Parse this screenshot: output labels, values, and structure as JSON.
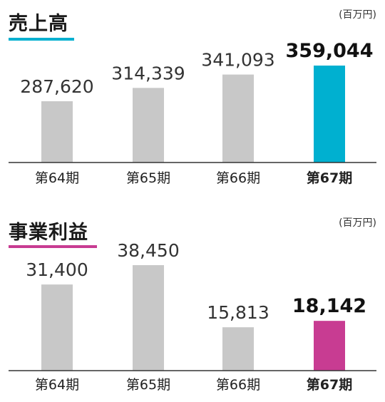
{
  "colors": {
    "bar_default": "#c8c8c8",
    "sales_accent": "#00b0d0",
    "profit_accent": "#c83c92",
    "axis": "#333333"
  },
  "chart_data": [
    {
      "type": "bar",
      "title": "売上高",
      "unit": "(百万円)",
      "categories": [
        "第64期",
        "第65期",
        "第66期",
        "第67期"
      ],
      "values": [
        287620,
        314339,
        341093,
        359044
      ],
      "value_labels": [
        "287,620",
        "314,339",
        "341,093",
        "359,044"
      ],
      "highlight_index": 3,
      "accent": "#00b0d0",
      "ylim": [
        165000,
        359044
      ]
    },
    {
      "type": "bar",
      "title": "事業利益",
      "unit": "(百万円)",
      "categories": [
        "第64期",
        "第65期",
        "第66期",
        "第67期"
      ],
      "values": [
        31400,
        38450,
        15813,
        18142
      ],
      "value_labels": [
        "31,400",
        "38,450",
        "15,813",
        "18,142"
      ],
      "highlight_index": 3,
      "accent": "#c83c92",
      "ylim": [
        0,
        38450
      ]
    }
  ]
}
